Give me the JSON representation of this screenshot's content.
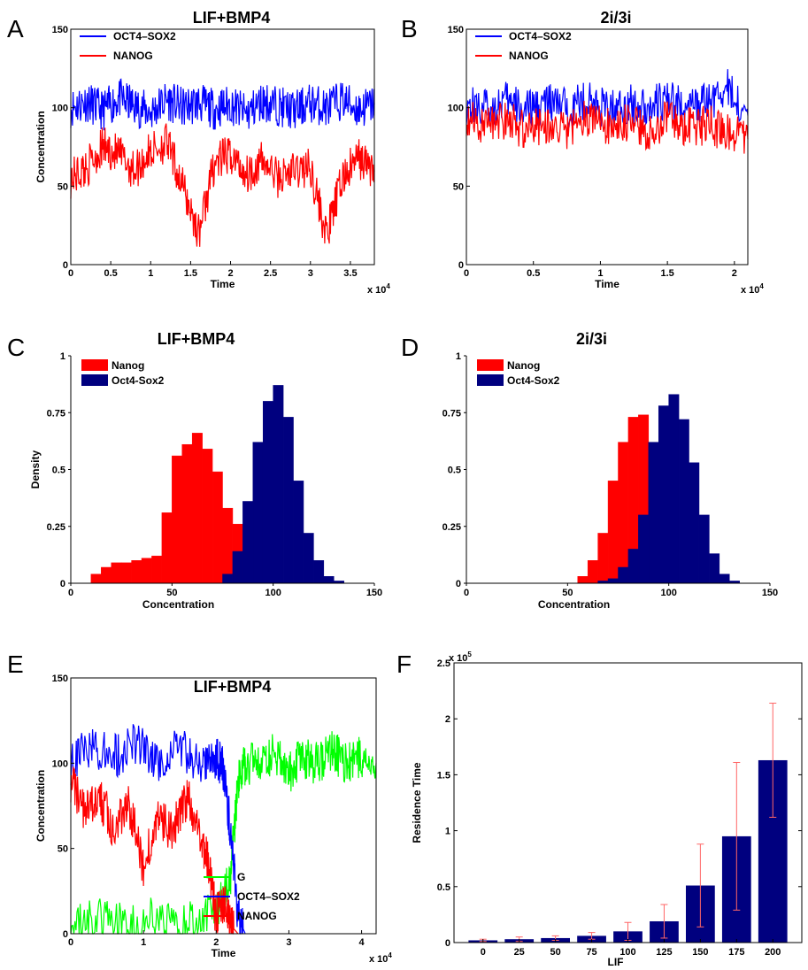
{
  "chart_data": [
    {
      "panel": "A",
      "type": "line",
      "title": "LIF+BMP4",
      "xlabel": "Time",
      "ylabel": "Concentration",
      "x_multiplier": "x 10^4",
      "xlim": [
        0,
        3.8
      ],
      "ylim": [
        0,
        150
      ],
      "xticks": [
        0,
        0.5,
        1,
        1.5,
        2,
        2.5,
        3,
        3.5
      ],
      "yticks": [
        0,
        50,
        100,
        150
      ],
      "legend_position": "top-left",
      "series": [
        {
          "name": "OCT4–SOX2",
          "color": "#0000ff",
          "x": [
            0,
            0.2,
            0.4,
            0.6,
            0.8,
            1.0,
            1.2,
            1.4,
            1.6,
            1.8,
            2.0,
            2.2,
            2.4,
            2.6,
            2.8,
            3.0,
            3.2,
            3.4,
            3.6,
            3.8
          ],
          "values": [
            100,
            104,
            98,
            106,
            101,
            97,
            105,
            100,
            103,
            99,
            102,
            96,
            104,
            101,
            98,
            103,
            100,
            105,
            99,
            102
          ]
        },
        {
          "name": "NANOG",
          "color": "#ff0000",
          "x": [
            0,
            0.2,
            0.4,
            0.6,
            0.8,
            1.0,
            1.2,
            1.4,
            1.6,
            1.8,
            2.0,
            2.2,
            2.4,
            2.6,
            2.8,
            3.0,
            3.2,
            3.4,
            3.6,
            3.8
          ],
          "values": [
            55,
            62,
            75,
            70,
            60,
            72,
            78,
            50,
            20,
            65,
            70,
            58,
            66,
            55,
            60,
            62,
            18,
            55,
            68,
            60
          ]
        }
      ]
    },
    {
      "panel": "B",
      "type": "line",
      "title": "2i/3i",
      "xlabel": "Time",
      "ylabel": "",
      "x_multiplier": "x 10^4",
      "xlim": [
        0,
        2.1
      ],
      "ylim": [
        0,
        150
      ],
      "xticks": [
        0,
        0.5,
        1,
        1.5,
        2
      ],
      "yticks": [
        0,
        50,
        100,
        150
      ],
      "legend_position": "top-left",
      "series": [
        {
          "name": "OCT4–SOX2",
          "color": "#0000ff",
          "x": [
            0,
            0.15,
            0.3,
            0.45,
            0.6,
            0.75,
            0.9,
            1.05,
            1.2,
            1.35,
            1.5,
            1.65,
            1.8,
            1.95,
            2.1
          ],
          "values": [
            102,
            100,
            104,
            98,
            103,
            100,
            105,
            99,
            102,
            101,
            104,
            100,
            103,
            112,
            95
          ]
        },
        {
          "name": "NANOG",
          "color": "#ff0000",
          "x": [
            0,
            0.15,
            0.3,
            0.45,
            0.6,
            0.75,
            0.9,
            1.05,
            1.2,
            1.35,
            1.5,
            1.65,
            1.8,
            1.95,
            2.1
          ],
          "values": [
            95,
            88,
            92,
            85,
            90,
            86,
            94,
            88,
            90,
            84,
            92,
            87,
            89,
            85,
            80
          ]
        }
      ]
    },
    {
      "panel": "C",
      "type": "bar",
      "title": "LIF+BMP4",
      "xlabel": "Concentration",
      "ylabel": "Density",
      "xlim": [
        0,
        150
      ],
      "ylim": [
        0,
        1
      ],
      "xticks": [
        0,
        50,
        100,
        150
      ],
      "yticks": [
        0,
        0.25,
        0.5,
        0.75,
        1
      ],
      "legend_position": "top-left",
      "bin_width": 5,
      "series": [
        {
          "name": "Nanog",
          "color": "#ff0000",
          "bin_starts": [
            10,
            15,
            20,
            25,
            30,
            35,
            40,
            45,
            50,
            55,
            60,
            65,
            70,
            75,
            80,
            85,
            90
          ],
          "values": [
            0.04,
            0.07,
            0.09,
            0.09,
            0.1,
            0.11,
            0.12,
            0.31,
            0.56,
            0.61,
            0.66,
            0.59,
            0.49,
            0.33,
            0.26,
            0.08,
            0.02
          ]
        },
        {
          "name": "Oct4-Sox2",
          "color": "#00007f",
          "bin_starts": [
            75,
            80,
            85,
            90,
            95,
            100,
            105,
            110,
            115,
            120,
            125,
            130
          ],
          "values": [
            0.04,
            0.14,
            0.36,
            0.62,
            0.8,
            0.87,
            0.73,
            0.45,
            0.22,
            0.1,
            0.03,
            0.01
          ]
        }
      ]
    },
    {
      "panel": "D",
      "type": "bar",
      "title": "2i/3i",
      "xlabel": "Concentration",
      "ylabel": "",
      "xlim": [
        0,
        150
      ],
      "ylim": [
        0,
        1
      ],
      "xticks": [
        0,
        50,
        100,
        150
      ],
      "yticks": [
        0,
        0.25,
        0.5,
        0.75,
        1
      ],
      "legend_position": "top-left",
      "bin_width": 5,
      "series": [
        {
          "name": "Nanog",
          "color": "#ff0000",
          "bin_starts": [
            55,
            60,
            65,
            70,
            75,
            80,
            85,
            90
          ],
          "values": [
            0.03,
            0.1,
            0.22,
            0.45,
            0.62,
            0.73,
            0.74,
            0.3
          ]
        },
        {
          "name": "Oct4-Sox2",
          "color": "#00007f",
          "bin_starts": [
            65,
            70,
            75,
            80,
            85,
            90,
            95,
            100,
            105,
            110,
            115,
            120,
            125,
            130
          ],
          "values": [
            0.01,
            0.02,
            0.07,
            0.15,
            0.3,
            0.62,
            0.78,
            0.83,
            0.72,
            0.53,
            0.3,
            0.13,
            0.04,
            0.01
          ]
        }
      ]
    },
    {
      "panel": "E",
      "type": "line",
      "title": "LIF+BMP4",
      "xlabel": "Time",
      "ylabel": "Concentration",
      "x_multiplier": "x 10^4",
      "xlim": [
        0,
        4.2
      ],
      "ylim": [
        0,
        150
      ],
      "xticks": [
        0,
        1,
        2,
        3,
        4
      ],
      "yticks": [
        0,
        50,
        100,
        150
      ],
      "legend_position": "bottom-middle",
      "series": [
        {
          "name": "G",
          "color": "#00ff00",
          "x": [
            0,
            0.4,
            0.8,
            1.2,
            1.6,
            2.0,
            2.2,
            2.3,
            2.4,
            2.6,
            2.8,
            3.0,
            3.2,
            3.4,
            3.6,
            3.8,
            4.0,
            4.2
          ],
          "values": [
            5,
            8,
            4,
            10,
            6,
            12,
            35,
            90,
            100,
            98,
            106,
            95,
            103,
            100,
            108,
            99,
            104,
            100
          ]
        },
        {
          "name": "OCT4–SOX2",
          "color": "#0000ff",
          "x": [
            0,
            0.3,
            0.6,
            0.9,
            1.2,
            1.5,
            1.8,
            2.0,
            2.1,
            2.2,
            2.3,
            2.4
          ],
          "values": [
            100,
            110,
            104,
            112,
            102,
            108,
            100,
            104,
            96,
            60,
            10,
            0
          ]
        },
        {
          "name": "NANOG",
          "color": "#ff0000",
          "x": [
            0,
            0.2,
            0.4,
            0.6,
            0.8,
            1.0,
            1.2,
            1.4,
            1.6,
            1.8,
            1.9,
            2.0,
            2.1,
            2.2,
            2.3
          ],
          "values": [
            90,
            70,
            80,
            60,
            75,
            40,
            70,
            60,
            80,
            55,
            40,
            10,
            20,
            5,
            0
          ]
        }
      ]
    },
    {
      "panel": "F",
      "type": "bar",
      "title": "",
      "xlabel": "LIF",
      "ylabel": "Residence Time",
      "y_multiplier": "x 10^5",
      "ylim": [
        0,
        2.5
      ],
      "yticks": [
        0,
        0.5,
        1,
        1.5,
        2,
        2.5
      ],
      "categories": [
        "0",
        "25",
        "50",
        "75",
        "100",
        "125",
        "150",
        "175",
        "200"
      ],
      "values": [
        0.02,
        0.03,
        0.04,
        0.06,
        0.1,
        0.19,
        0.51,
        0.95,
        1.63
      ],
      "error": [
        0.01,
        0.02,
        0.02,
        0.03,
        0.08,
        0.15,
        0.37,
        0.66,
        0.51
      ],
      "bar_color": "#00007f",
      "error_color": "#ff6666"
    }
  ]
}
